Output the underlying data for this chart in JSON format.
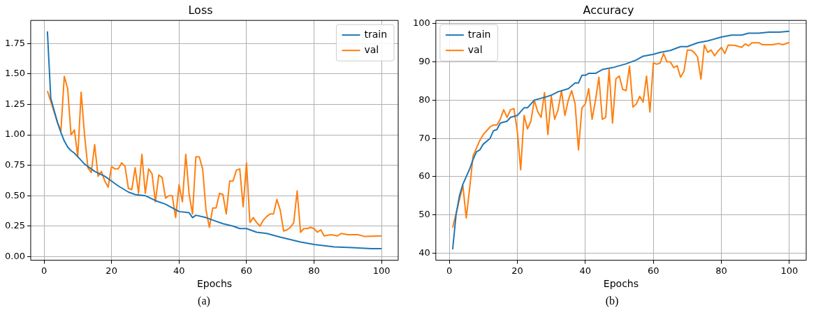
{
  "chart_data": [
    {
      "type": "line",
      "title": "Loss",
      "xlabel": "Epochs",
      "xlim": [
        -3.95,
        104.95
      ],
      "xticks": [
        0,
        20,
        40,
        60,
        80,
        100
      ],
      "ylim": [
        -0.03,
        1.94
      ],
      "yticks": [
        {
          "value": 0,
          "label": "0.00"
        },
        {
          "value": 0.25,
          "label": "0.25"
        },
        {
          "value": 0.5,
          "label": "0.50"
        },
        {
          "value": 0.75,
          "label": "0.75"
        },
        {
          "value": 1,
          "label": "1.00"
        },
        {
          "value": 1.25,
          "label": "1.25"
        },
        {
          "value": 1.5,
          "label": "1.50"
        },
        {
          "value": 1.75,
          "label": "1.75"
        }
      ],
      "grid": true,
      "legend": "top right",
      "annotations": [
        "(a)"
      ],
      "series": [
        {
          "name": "train",
          "color": "#1f77b4",
          "x": [
            1,
            2,
            3,
            4,
            5,
            6,
            7,
            8,
            9,
            10,
            12,
            15,
            18,
            20,
            22,
            25,
            27,
            30,
            33,
            36,
            40,
            43,
            44,
            45,
            48,
            50,
            53,
            56,
            58,
            60,
            63,
            66,
            70,
            73,
            76,
            80,
            83,
            86,
            90,
            94,
            97,
            100
          ],
          "values": [
            1.85,
            1.3,
            1.2,
            1.1,
            1.02,
            0.95,
            0.9,
            0.87,
            0.85,
            0.82,
            0.76,
            0.7,
            0.66,
            0.62,
            0.58,
            0.53,
            0.51,
            0.5,
            0.46,
            0.43,
            0.37,
            0.36,
            0.32,
            0.34,
            0.32,
            0.3,
            0.27,
            0.25,
            0.23,
            0.23,
            0.2,
            0.19,
            0.16,
            0.14,
            0.12,
            0.1,
            0.09,
            0.08,
            0.075,
            0.07,
            0.065,
            0.065
          ]
        },
        {
          "name": "val",
          "color": "#ff7f0e",
          "x": [
            1,
            4,
            5,
            6,
            7,
            8,
            9,
            10,
            11,
            12,
            13,
            14,
            15,
            16,
            17,
            18,
            19,
            20,
            21,
            22,
            23,
            24,
            25,
            26,
            27,
            28,
            29,
            30,
            31,
            32,
            33,
            34,
            35,
            36,
            37,
            38,
            39,
            40,
            41,
            42,
            43,
            44,
            45,
            46,
            47,
            48,
            49,
            50,
            51,
            52,
            53,
            54,
            55,
            56,
            57,
            58,
            59,
            60,
            61,
            62,
            63,
            64,
            65,
            66,
            67,
            68,
            69,
            70,
            71,
            72,
            73,
            74,
            75,
            76,
            77,
            78,
            79,
            80,
            81,
            82,
            83,
            85,
            87,
            88,
            90,
            93,
            95,
            100
          ],
          "values": [
            1.36,
            1.1,
            1.03,
            1.48,
            1.38,
            1.0,
            1.04,
            0.82,
            1.35,
            1.0,
            0.73,
            0.69,
            0.92,
            0.66,
            0.7,
            0.62,
            0.57,
            0.74,
            0.72,
            0.72,
            0.77,
            0.74,
            0.56,
            0.55,
            0.73,
            0.52,
            0.84,
            0.52,
            0.72,
            0.68,
            0.45,
            0.67,
            0.65,
            0.48,
            0.5,
            0.5,
            0.32,
            0.59,
            0.45,
            0.84,
            0.51,
            0.35,
            0.82,
            0.82,
            0.72,
            0.38,
            0.24,
            0.4,
            0.4,
            0.52,
            0.51,
            0.35,
            0.62,
            0.62,
            0.71,
            0.72,
            0.41,
            0.77,
            0.28,
            0.32,
            0.28,
            0.25,
            0.3,
            0.33,
            0.35,
            0.35,
            0.47,
            0.38,
            0.21,
            0.22,
            0.24,
            0.28,
            0.54,
            0.2,
            0.23,
            0.23,
            0.24,
            0.23,
            0.2,
            0.22,
            0.17,
            0.18,
            0.17,
            0.19,
            0.18,
            0.18,
            0.165,
            0.17
          ]
        }
      ]
    },
    {
      "type": "line",
      "title": "Accuracy",
      "xlabel": "Epochs",
      "xlim": [
        -3.95,
        104.95
      ],
      "xticks": [
        0,
        20,
        40,
        60,
        80,
        100
      ],
      "ylim": [
        38.15,
        100.85
      ],
      "yticks": [
        40,
        50,
        60,
        70,
        80,
        90,
        100
      ],
      "grid": true,
      "legend": "top left",
      "annotations": [
        "(b)"
      ],
      "series": [
        {
          "name": "train",
          "color": "#1f77b4",
          "x": [
            1,
            2,
            3,
            4,
            5,
            6,
            7,
            8,
            9,
            10,
            12,
            13,
            14,
            15,
            17,
            18,
            20,
            21,
            22,
            23,
            25,
            27,
            29,
            30,
            32,
            35,
            37,
            38,
            39,
            40,
            41,
            43,
            45,
            48,
            50,
            52,
            55,
            57,
            60,
            62,
            65,
            68,
            70,
            73,
            76,
            80,
            83,
            86,
            88,
            91,
            94,
            97,
            100
          ],
          "values": [
            41,
            50,
            55,
            58,
            60,
            62,
            64.5,
            66.5,
            67,
            68.5,
            70,
            72,
            72.3,
            74,
            74.5,
            75.5,
            76,
            77,
            78,
            78,
            80,
            80.5,
            81,
            81.3,
            82.2,
            83,
            84.5,
            84.5,
            86.5,
            86.5,
            87,
            87,
            88,
            88.5,
            89,
            89.5,
            90.5,
            91.5,
            92,
            92.5,
            93,
            94,
            94,
            95,
            95.5,
            96.5,
            97,
            97,
            97.5,
            97.5,
            97.8,
            97.8,
            98
          ]
        },
        {
          "name": "val",
          "color": "#ff7f0e",
          "x": [
            1,
            4,
            5,
            6,
            7,
            9,
            10,
            12,
            13,
            14,
            15,
            16,
            17,
            18,
            19,
            20,
            21,
            22,
            23,
            24,
            25,
            26,
            27,
            28,
            29,
            30,
            31,
            32,
            33,
            34,
            35,
            36,
            37,
            38,
            39,
            40,
            41,
            42,
            43,
            44,
            45,
            46,
            47,
            48,
            49,
            50,
            51,
            52,
            53,
            54,
            55,
            56,
            57,
            58,
            59,
            60,
            61,
            62,
            63,
            64,
            65,
            66,
            67,
            68,
            69,
            70,
            71,
            72,
            73,
            74,
            75,
            76,
            77,
            78,
            79,
            80,
            81,
            82,
            84,
            86,
            87,
            88,
            89,
            91,
            92,
            95,
            97,
            98,
            100
          ],
          "values": [
            46.7,
            57.7,
            49.2,
            57,
            65.4,
            69.5,
            71,
            73,
            73.5,
            73.5,
            75,
            77.5,
            75.5,
            77.5,
            77.8,
            72,
            61.8,
            76,
            72.5,
            74.5,
            80,
            77,
            75.5,
            82,
            71,
            81,
            75,
            77.5,
            82.5,
            76,
            80,
            82.5,
            79,
            67,
            78,
            79,
            83,
            75,
            80,
            86,
            75,
            75.5,
            88,
            74,
            85.6,
            86.3,
            82.8,
            82.5,
            88.9,
            78.2,
            79,
            81,
            79.5,
            86.3,
            76.9,
            89.7,
            89.4,
            89.7,
            92.2,
            90,
            90,
            88.5,
            89,
            86,
            87.5,
            93.1,
            93.1,
            92.5,
            91.3,
            85.5,
            94.4,
            92.5,
            93.1,
            91.6,
            92.8,
            93.8,
            92.2,
            94.4,
            94.3,
            93.8,
            94.7,
            94.2,
            95,
            95,
            94.5,
            94.5,
            94.8,
            94.5,
            95.1
          ]
        }
      ]
    }
  ]
}
